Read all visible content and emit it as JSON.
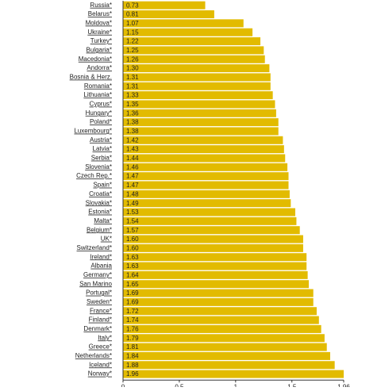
{
  "chart_data": {
    "type": "barh",
    "color": "#e2bb00",
    "categories": [
      "Russia*",
      "Belarus*",
      "Moldova*",
      "Ukraine*",
      "Turkey*",
      "Bulgaria*",
      "Macedonia*",
      "Andorra*",
      "Bosnia & Herz.",
      "Romania*",
      "Lithuania*",
      "Cyprus*",
      "Hungary*",
      "Poland*",
      "Luxembourg*",
      "Austria*",
      "Latvia*",
      "Serbia*",
      "Slovenia*",
      "Czech Rep.*",
      "Spain*",
      "Croatia*",
      "Slovakia*",
      "Estonia*",
      "Malta*",
      "Belgium*",
      "UK*",
      "Switzerland*",
      "Ireland*",
      "Albania",
      "Germany*",
      "San Marino",
      "Portugal*",
      "Sweden*",
      "France*",
      "Finland*",
      "Denmark*",
      "Italy*",
      "Greece*",
      "Netherlands*",
      "Iceland*",
      "Norway*"
    ],
    "values": [
      0.73,
      0.81,
      1.07,
      1.15,
      1.22,
      1.25,
      1.26,
      1.3,
      1.31,
      1.31,
      1.33,
      1.35,
      1.36,
      1.38,
      1.38,
      1.42,
      1.43,
      1.44,
      1.46,
      1.47,
      1.47,
      1.48,
      1.49,
      1.53,
      1.54,
      1.57,
      1.6,
      1.6,
      1.63,
      1.63,
      1.64,
      1.65,
      1.69,
      1.69,
      1.72,
      1.74,
      1.76,
      1.79,
      1.81,
      1.84,
      1.88,
      1.96
    ],
    "value_labels": [
      "0.73",
      "0.81",
      "1.07",
      "1.15",
      "1.22",
      "1.25",
      "1.26",
      "1.30",
      "1.31",
      "1.31",
      "1.33",
      "1.35",
      "1.36",
      "1.38",
      "1.38",
      "1.42",
      "1.43",
      "1.44",
      "1.46",
      "1.47",
      "1.47",
      "1.48",
      "1.49",
      "1.53",
      "1.54",
      "1.57",
      "1.60",
      "1.60",
      "1.63",
      "1.63",
      "1.64",
      "1.65",
      "1.69",
      "1.69",
      "1.72",
      "1.74",
      "1.76",
      "1.79",
      "1.81",
      "1.84",
      "1.88",
      "1.96"
    ],
    "xlim": [
      0,
      1.96
    ],
    "xticks": [
      0,
      0.5,
      1,
      1.5,
      1.96
    ]
  }
}
